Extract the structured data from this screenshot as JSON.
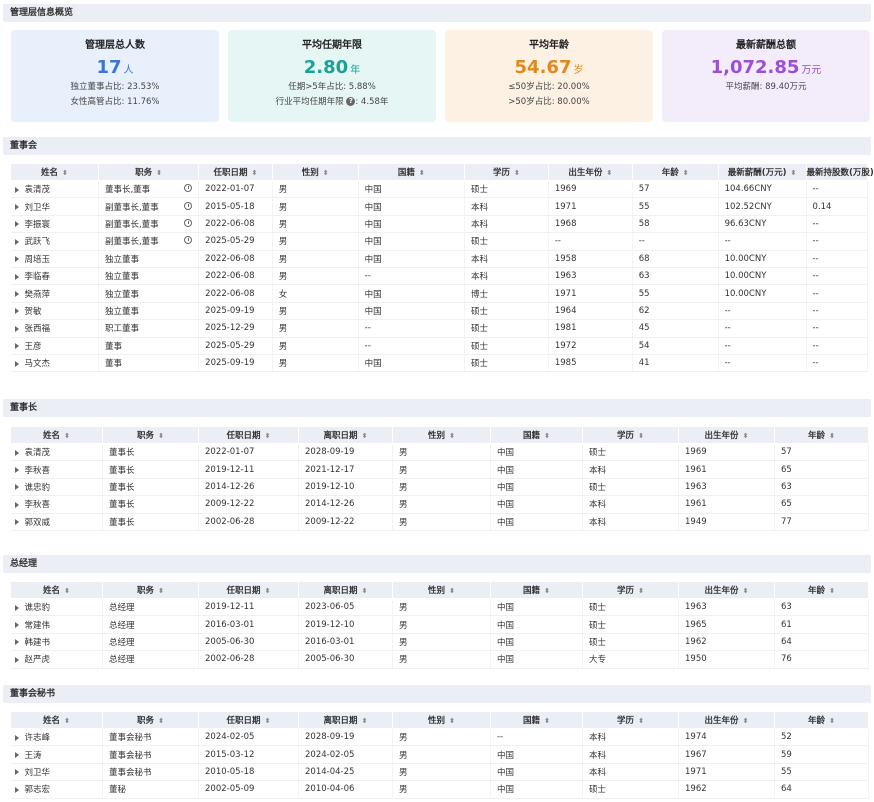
{
  "overview": {
    "title": "管理层信息概览",
    "cards": [
      {
        "title": "管理层总人数",
        "value": "17",
        "unit": "人",
        "color": "#3a74d8",
        "bg": "#e8f0fc",
        "lines": [
          "独立董事占比: 23.53%",
          "女性高管占比: 11.76%"
        ]
      },
      {
        "title": "平均任期年限",
        "value": "2.80",
        "unit": "年",
        "color": "#1aa295",
        "bg": "#e6f6f4",
        "lines": [
          "任期>5年占比: 5.88%",
          "行业平均任期年限",
          "4.58年"
        ]
      },
      {
        "title": "平均年龄",
        "value": "54.67",
        "unit": "岁",
        "color": "#e08a1e",
        "bg": "#fdf1e4",
        "lines": [
          "≤50岁占比: 20.00%",
          ">50岁占比: 80.00%"
        ]
      },
      {
        "title": "最新薪酬总额",
        "value": "1,072.85",
        "unit": "万元",
        "color": "#9b4fd6",
        "bg": "#f3ecfb",
        "lines": [
          "平均薪酬: 89.40万元"
        ]
      }
    ]
  },
  "board": {
    "title": "董事会",
    "columns": [
      "姓名",
      "职务",
      "任职日期",
      "性别",
      "国籍",
      "学历",
      "出生年份",
      "年龄",
      "最新薪酬(万元)",
      "最新持股数(万股)"
    ],
    "rows": [
      [
        "袁清茂",
        "董事长,董事",
        "2022-01-07",
        "男",
        "中国",
        "硕士",
        "1969",
        "57",
        "104.66CNY",
        "--"
      ],
      [
        "刘卫华",
        "副董事长,董事",
        "2015-05-18",
        "男",
        "中国",
        "本科",
        "1971",
        "55",
        "102.52CNY",
        "0.14"
      ],
      [
        "李振寰",
        "副董事长,董事",
        "2022-06-08",
        "男",
        "中国",
        "本科",
        "1968",
        "58",
        "96.63CNY",
        "--"
      ],
      [
        "武跃飞",
        "副董事长,董事",
        "2025-05-29",
        "男",
        "中国",
        "硕士",
        "--",
        "--",
        "--",
        "--"
      ],
      [
        "周培玉",
        "独立董事",
        "2022-06-08",
        "男",
        "中国",
        "本科",
        "1958",
        "68",
        "10.00CNY",
        "--"
      ],
      [
        "李临春",
        "独立董事",
        "2022-06-08",
        "男",
        "--",
        "本科",
        "1963",
        "63",
        "10.00CNY",
        "--"
      ],
      [
        "樊燕萍",
        "独立董事",
        "2022-06-08",
        "女",
        "中国",
        "博士",
        "1971",
        "55",
        "10.00CNY",
        "--"
      ],
      [
        "贺敏",
        "独立董事",
        "2025-09-19",
        "男",
        "中国",
        "硕士",
        "1964",
        "62",
        "--",
        "--"
      ],
      [
        "张西福",
        "职工董事",
        "2025-12-29",
        "男",
        "--",
        "硕士",
        "1981",
        "45",
        "--",
        "--"
      ],
      [
        "王彦",
        "董事",
        "2025-05-29",
        "男",
        "--",
        "硕士",
        "1972",
        "54",
        "--",
        "--"
      ],
      [
        "马文杰",
        "董事",
        "2025-09-19",
        "男",
        "中国",
        "硕士",
        "1985",
        "41",
        "--",
        "--"
      ]
    ],
    "clock_rows": [
      0,
      1,
      2,
      3
    ]
  },
  "chairman": {
    "title": "董事长",
    "columns": [
      "姓名",
      "职务",
      "任职日期",
      "离职日期",
      "性别",
      "国籍",
      "学历",
      "出生年份",
      "年龄"
    ],
    "rows": [
      [
        "袁清茂",
        "董事长",
        "2022-01-07",
        "2028-09-19",
        "男",
        "中国",
        "硕士",
        "1969",
        "57"
      ],
      [
        "李秋喜",
        "董事长",
        "2019-12-11",
        "2021-12-17",
        "男",
        "中国",
        "本科",
        "1961",
        "65"
      ],
      [
        "谯忠豹",
        "董事长",
        "2014-12-26",
        "2019-12-10",
        "男",
        "中国",
        "硕士",
        "1963",
        "63"
      ],
      [
        "李秋喜",
        "董事长",
        "2009-12-22",
        "2014-12-26",
        "男",
        "中国",
        "本科",
        "1961",
        "65"
      ],
      [
        "郭双威",
        "董事长",
        "2002-06-28",
        "2009-12-22",
        "男",
        "中国",
        "本科",
        "1949",
        "77"
      ]
    ]
  },
  "gm": {
    "title": "总经理",
    "columns": [
      "姓名",
      "职务",
      "任职日期",
      "离职日期",
      "性别",
      "国籍",
      "学历",
      "出生年份",
      "年龄"
    ],
    "rows": [
      [
        "谯忠豹",
        "总经理",
        "2019-12-11",
        "2023-06-05",
        "男",
        "中国",
        "硕士",
        "1963",
        "63"
      ],
      [
        "常建伟",
        "总经理",
        "2016-03-01",
        "2019-12-10",
        "男",
        "中国",
        "硕士",
        "1965",
        "61"
      ],
      [
        "韩建书",
        "总经理",
        "2005-06-30",
        "2016-03-01",
        "男",
        "中国",
        "硕士",
        "1962",
        "64"
      ],
      [
        "赵严虎",
        "总经理",
        "2002-06-28",
        "2005-06-30",
        "男",
        "中国",
        "大专",
        "1950",
        "76"
      ]
    ]
  },
  "secretary": {
    "title": "董事会秘书",
    "columns": [
      "姓名",
      "职务",
      "任职日期",
      "离职日期",
      "性别",
      "国籍",
      "学历",
      "出生年份",
      "年龄"
    ],
    "rows": [
      [
        "许志峰",
        "董事会秘书",
        "2024-02-05",
        "2028-09-19",
        "男",
        "--",
        "本科",
        "1974",
        "52"
      ],
      [
        "王涛",
        "董事会秘书",
        "2015-03-12",
        "2024-02-05",
        "男",
        "中国",
        "本科",
        "1967",
        "59"
      ],
      [
        "刘卫华",
        "董事会秘书",
        "2010-05-18",
        "2014-04-25",
        "男",
        "中国",
        "本科",
        "1971",
        "55"
      ],
      [
        "郭志宏",
        "董秘",
        "2002-05-09",
        "2010-04-06",
        "男",
        "中国",
        "硕士",
        "1962",
        "64"
      ]
    ]
  }
}
